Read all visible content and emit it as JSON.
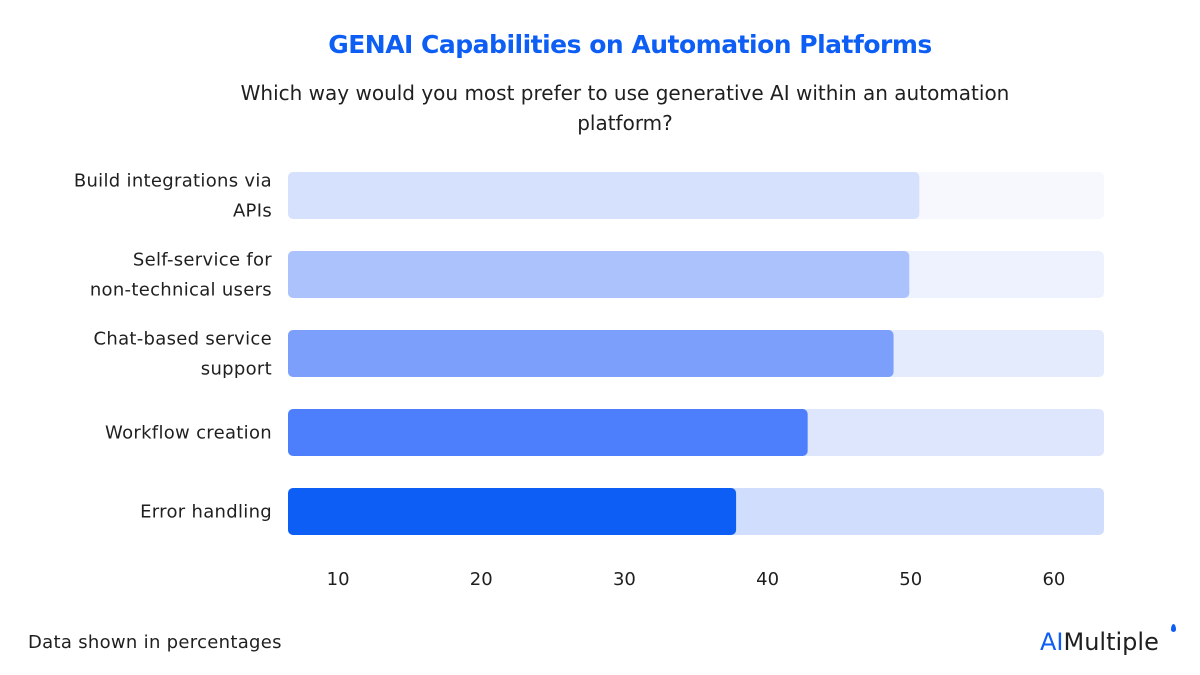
{
  "chart_data": {
    "type": "bar",
    "orientation": "horizontal",
    "title": "GENAI Capabilities on Automation Platforms",
    "subtitle": "Which way would you most prefer to use generative AI within an automation platform?",
    "categories": [
      [
        "Build integrations via",
        "APIs"
      ],
      [
        "Self-service for",
        "non-technical users"
      ],
      [
        "Chat-based service",
        "support"
      ],
      [
        "Workflow creation"
      ],
      [
        "Error handling"
      ]
    ],
    "values": [
      50.6,
      49.9,
      48.8,
      42.8,
      37.8
    ],
    "xlim": [
      6.5,
      63.5
    ],
    "xticks": [
      10,
      20,
      30,
      40,
      50,
      60
    ],
    "bar_colors": [
      "#d6e1fd",
      "#acc2fd",
      "#7b9ffb",
      "#4d7ffc",
      "#0d5ef4"
    ],
    "track_colors": [
      "#f6f8fe",
      "#edf2fe",
      "#e4ebfd",
      "#dde6fd",
      "#d0ddfd"
    ],
    "grid": false
  },
  "footnote": "Data shown in percentages",
  "brand": {
    "prefix": "AI",
    "suffix": "Multiple"
  }
}
